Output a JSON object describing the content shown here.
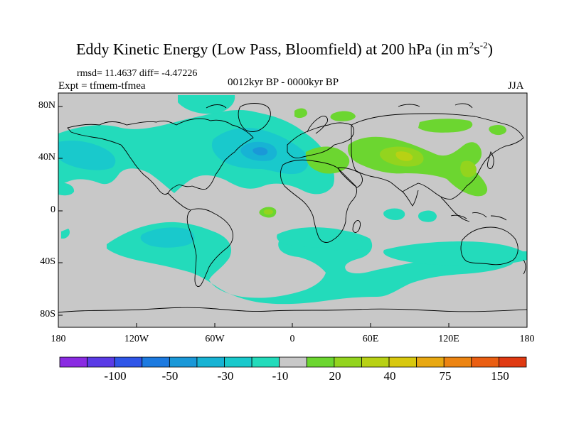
{
  "title_main": "Eddy Kinetic Energy (Low Pass, Bloomfield) at 200 hPa (in m",
  "title_sup1": "2",
  "title_mid": "s",
  "title_sup2": "-2",
  "title_end": ")",
  "stats": "rmsd= 11.4637 diff= -4.47226",
  "experiment": "Expt = tfmem-tfmea",
  "period": "0012kyr BP - 0000kyr BP",
  "season": "JJA",
  "lat_labels": [
    "80N",
    "40N",
    "0",
    "40S",
    "80S"
  ],
  "lon_labels": [
    "180",
    "120W",
    "60W",
    "0",
    "60E",
    "120E",
    "180"
  ],
  "colorbar": {
    "colors": [
      "#8a2be2",
      "#5a3be6",
      "#2f55e8",
      "#1c7ae0",
      "#1a98d8",
      "#17b3d4",
      "#19c9cc",
      "#23dbbb",
      "#c8c8c8",
      "#6cd630",
      "#93d41e",
      "#b8d114",
      "#d8c80e",
      "#e8a812",
      "#ec8412",
      "#ea5e12",
      "#e03a12"
    ],
    "labels": [
      "-100",
      "-50",
      "-30",
      "-10",
      "20",
      "40",
      "75",
      "150"
    ]
  },
  "colors": {
    "background_gray": "#c8c8c8",
    "negative_light": "#23dbbb",
    "negative_mid": "#19c9cc",
    "negative_dark": "#17b3d4",
    "negative_deep": "#1a98d8",
    "positive_light": "#6cd630",
    "positive_mid": "#93d41e",
    "positive_strong": "#b8d114"
  }
}
